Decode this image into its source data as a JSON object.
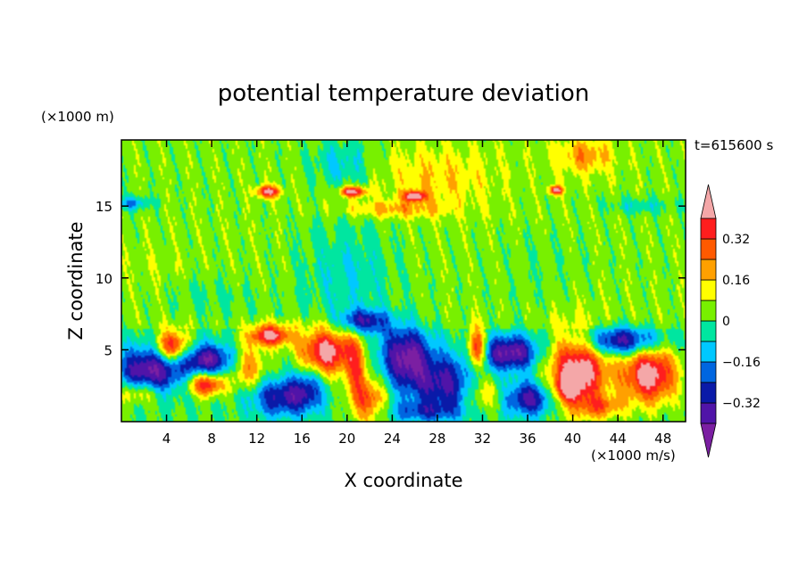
{
  "chart_data": {
    "type": "heatmap",
    "title": "potential temperature deviation",
    "xlabel": "X coordinate",
    "ylabel": "Z coordinate",
    "x_units": "(×1000 m/s)",
    "y_units": "(×1000 m)",
    "time_label": "t=615600 s",
    "xlim": [
      0,
      50
    ],
    "ylim": [
      0,
      19.6
    ],
    "x_ticks": [
      4,
      8,
      12,
      16,
      20,
      24,
      28,
      32,
      36,
      40,
      44,
      48
    ],
    "x_tick_labels": [
      "4",
      "8",
      "12",
      "16",
      "20",
      "24",
      "28",
      "32",
      "36",
      "40",
      "44",
      "48"
    ],
    "y_ticks": [
      5,
      10,
      15
    ],
    "y_tick_labels": [
      "5",
      "10",
      "15"
    ],
    "colorbar": {
      "levels": [
        -0.4,
        -0.32,
        -0.24,
        -0.16,
        -0.08,
        0,
        0.08,
        0.16,
        0.24,
        0.32,
        0.4
      ],
      "labels": [
        "0.32",
        "0.16",
        "0",
        "−0.16",
        "−0.32"
      ],
      "label_values": [
        0.32,
        0.16,
        0,
        -0.16,
        -0.32
      ],
      "colors": [
        "#7b1fa2",
        "#5014a8",
        "#0a1aa8",
        "#0066e0",
        "#00c8ff",
        "#00e6a0",
        "#78f000",
        "#ffff00",
        "#ffa000",
        "#ff5a00",
        "#ff1e1e",
        "#f4a7a8"
      ]
    },
    "field": {
      "background_level": 0.04,
      "tropopause_z": 6.5,
      "blobs": [
        {
          "x": 4.5,
          "z": 5.2,
          "rx": 1.4,
          "rz": 1.1,
          "v": 0.45
        },
        {
          "x": 2.6,
          "z": 3.6,
          "rx": 3.0,
          "rz": 1.6,
          "v": -0.42
        },
        {
          "x": 7.5,
          "z": 2.6,
          "rx": 1.6,
          "rz": 0.8,
          "v": 0.4
        },
        {
          "x": 1.5,
          "z": 2.0,
          "rx": 1.8,
          "rz": 0.8,
          "v": 0.22
        },
        {
          "x": 7.8,
          "z": 4.3,
          "rx": 2.4,
          "rz": 1.1,
          "v": -0.38
        },
        {
          "x": 13.2,
          "z": 6.0,
          "rx": 1.8,
          "rz": 0.7,
          "v": 0.45
        },
        {
          "x": 14.2,
          "z": 1.7,
          "rx": 2.8,
          "rz": 1.3,
          "v": -0.33
        },
        {
          "x": 11.2,
          "z": 3.8,
          "rx": 1.6,
          "rz": 1.6,
          "v": 0.24
        },
        {
          "x": 18.2,
          "z": 4.9,
          "rx": 2.4,
          "rz": 1.6,
          "v": 0.48
        },
        {
          "x": 16.5,
          "z": 2.4,
          "rx": 1.4,
          "rz": 1.5,
          "v": -0.2
        },
        {
          "x": 22.0,
          "z": 1.5,
          "rx": 1.5,
          "rz": 1.6,
          "v": 0.3
        },
        {
          "x": 20.8,
          "z": 3.8,
          "rx": 0.9,
          "rz": 2.3,
          "v": 0.25
        },
        {
          "x": 21.5,
          "z": 7.0,
          "rx": 2.2,
          "rz": 0.8,
          "v": -0.34
        },
        {
          "x": 25.2,
          "z": 4.6,
          "rx": 2.2,
          "rz": 2.0,
          "v": -0.4
        },
        {
          "x": 28.8,
          "z": 2.6,
          "rx": 3.5,
          "rz": 2.0,
          "v": -0.34
        },
        {
          "x": 31.5,
          "z": 5.0,
          "rx": 0.8,
          "rz": 1.4,
          "v": 0.45
        },
        {
          "x": 32.0,
          "z": 2.0,
          "rx": 1.8,
          "rz": 1.4,
          "v": 0.24
        },
        {
          "x": 34.5,
          "z": 4.8,
          "rx": 2.5,
          "rz": 1.2,
          "v": -0.42
        },
        {
          "x": 36.2,
          "z": 1.6,
          "rx": 2.2,
          "rz": 1.2,
          "v": -0.36
        },
        {
          "x": 40.5,
          "z": 3.6,
          "rx": 2.6,
          "rz": 2.6,
          "v": 0.48
        },
        {
          "x": 39.5,
          "z": 2.3,
          "rx": 1.2,
          "rz": 0.9,
          "v": 0.25
        },
        {
          "x": 46.8,
          "z": 3.3,
          "rx": 2.4,
          "rz": 2.0,
          "v": 0.47
        },
        {
          "x": 42.5,
          "z": 1.0,
          "rx": 2.0,
          "rz": 0.8,
          "v": 0.2
        },
        {
          "x": 44.2,
          "z": 5.6,
          "rx": 3.5,
          "rz": 1.0,
          "v": -0.4
        },
        {
          "x": 26.5,
          "z": 0.7,
          "rx": 3.5,
          "rz": 0.7,
          "v": -0.18
        },
        {
          "x": 20.0,
          "z": 10.0,
          "rx": 4.0,
          "rz": 4.0,
          "v": -0.12
        },
        {
          "x": 19.5,
          "z": 18.0,
          "rx": 2.5,
          "rz": 1.6,
          "v": -0.14
        },
        {
          "x": 3.0,
          "z": 11.0,
          "rx": 2.5,
          "rz": 2.0,
          "v": 0.02
        },
        {
          "x": 28.0,
          "z": 17.0,
          "rx": 5.0,
          "rz": 2.0,
          "v": 0.12
        },
        {
          "x": 41.0,
          "z": 18.5,
          "rx": 2.5,
          "rz": 1.2,
          "v": 0.18
        },
        {
          "x": 24.0,
          "z": 14.8,
          "rx": 5.0,
          "rz": 0.6,
          "v": 0.15
        },
        {
          "x": 1.0,
          "z": 15.2,
          "rx": 1.5,
          "rz": 0.5,
          "v": -0.2
        },
        {
          "x": 46.0,
          "z": 15.0,
          "rx": 3.0,
          "rz": 0.6,
          "v": -0.1
        },
        {
          "x": 13.0,
          "z": 16.0,
          "rx": 1.0,
          "rz": 0.4,
          "v": 0.42
        },
        {
          "x": 20.5,
          "z": 16.0,
          "rx": 1.2,
          "rz": 0.35,
          "v": 0.42
        },
        {
          "x": 26.0,
          "z": 15.7,
          "rx": 1.0,
          "rz": 0.35,
          "v": 0.42
        },
        {
          "x": 38.5,
          "z": 16.1,
          "rx": 0.6,
          "rz": 0.3,
          "v": 0.42
        },
        {
          "x": 37.0,
          "z": 10.5,
          "rx": 3.5,
          "rz": 2.5,
          "v": -0.03
        },
        {
          "x": 8.0,
          "z": 8.5,
          "rx": 4.0,
          "rz": 1.5,
          "v": -0.05
        }
      ]
    }
  }
}
